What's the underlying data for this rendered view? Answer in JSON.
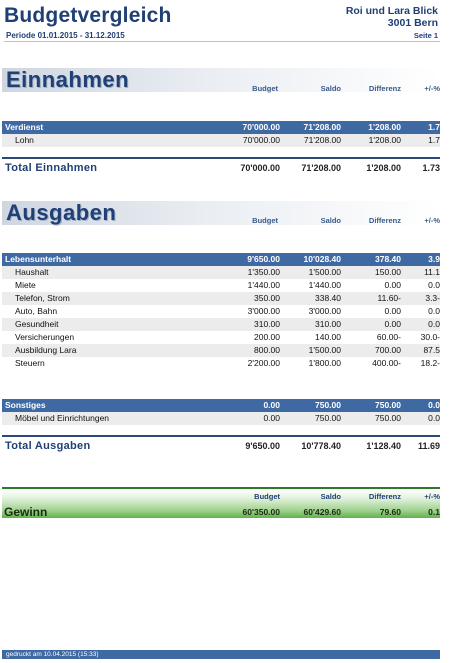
{
  "header": {
    "title": "Budgetvergleich",
    "period": "Periode 01.01.2015 - 31.12.2015",
    "owner_name": "Roi und Lara Blick",
    "owner_city": "3001 Bern",
    "page": "Seite 1"
  },
  "columns": {
    "budget": "Budget",
    "saldo": "Saldo",
    "differenz": "Differenz",
    "pct": "+/-%"
  },
  "einnahmen": {
    "title": "Einnahmen",
    "groups": [
      {
        "label": "Verdienst",
        "budget": "70'000.00",
        "saldo": "71'208.00",
        "diff": "1'208.00",
        "pct": "1.7",
        "items": [
          {
            "label": "Lohn",
            "budget": "70'000.00",
            "saldo": "71'208.00",
            "diff": "1'208.00",
            "pct": "1.7"
          }
        ]
      }
    ],
    "total": {
      "label": "Total Einnahmen",
      "budget": "70'000.00",
      "saldo": "71'208.00",
      "diff": "1'208.00",
      "pct": "1.73"
    }
  },
  "ausgaben": {
    "title": "Ausgaben",
    "groups": [
      {
        "label": "Lebensunterhalt",
        "budget": "9'650.00",
        "saldo": "10'028.40",
        "diff": "378.40",
        "pct": "3.9",
        "items": [
          {
            "label": "Haushalt",
            "budget": "1'350.00",
            "saldo": "1'500.00",
            "diff": "150.00",
            "pct": "11.1"
          },
          {
            "label": "Miete",
            "budget": "1'440.00",
            "saldo": "1'440.00",
            "diff": "0.00",
            "pct": "0.0"
          },
          {
            "label": "Telefon, Strom",
            "budget": "350.00",
            "saldo": "338.40",
            "diff": "11.60-",
            "pct": "3.3-"
          },
          {
            "label": "Auto, Bahn",
            "budget": "3'000.00",
            "saldo": "3'000.00",
            "diff": "0.00",
            "pct": "0.0"
          },
          {
            "label": "Gesundheit",
            "budget": "310.00",
            "saldo": "310.00",
            "diff": "0.00",
            "pct": "0.0"
          },
          {
            "label": "Versicherungen",
            "budget": "200.00",
            "saldo": "140.00",
            "diff": "60.00-",
            "pct": "30.0-"
          },
          {
            "label": "Ausbildung Lara",
            "budget": "800.00",
            "saldo": "1'500.00",
            "diff": "700.00",
            "pct": "87.5"
          },
          {
            "label": "Steuern",
            "budget": "2'200.00",
            "saldo": "1'800.00",
            "diff": "400.00-",
            "pct": "18.2-"
          }
        ]
      },
      {
        "label": "Sonstiges",
        "budget": "0.00",
        "saldo": "750.00",
        "diff": "750.00",
        "pct": "0.0",
        "items": [
          {
            "label": "Möbel und Einrichtungen",
            "budget": "0.00",
            "saldo": "750.00",
            "diff": "750.00",
            "pct": "0.0"
          }
        ]
      }
    ],
    "total": {
      "label": "Total Ausgaben",
      "budget": "9'650.00",
      "saldo": "10'778.40",
      "diff": "1'128.40",
      "pct": "11.69"
    }
  },
  "gewinn": {
    "label": "Gewinn",
    "budget": "60'350.00",
    "saldo": "60'429.60",
    "diff": "79.60",
    "pct": "0.1"
  },
  "footer": {
    "printed": "gedruckt am 10.04.2015 (15:33)"
  }
}
